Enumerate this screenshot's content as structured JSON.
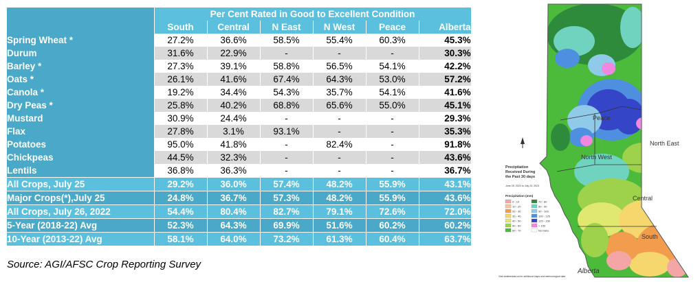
{
  "table": {
    "title": "Per Cent Rated in Good to Excellent Condition",
    "columns": [
      "South",
      "Central",
      "N East",
      "N West",
      "Peace",
      "Alberta"
    ],
    "crop_rows": [
      {
        "label": "Spring Wheat *",
        "values": [
          "27.2%",
          "36.6%",
          "58.5%",
          "55.4%",
          "60.3%",
          "45.3%"
        ]
      },
      {
        "label": "Durum",
        "values": [
          "31.6%",
          "22.9%",
          "-",
          "-",
          "-",
          "30.3%"
        ]
      },
      {
        "label": "Barley *",
        "values": [
          "27.3%",
          "39.1%",
          "58.8%",
          "56.5%",
          "54.1%",
          "42.2%"
        ]
      },
      {
        "label": "Oats *",
        "values": [
          "26.1%",
          "41.6%",
          "67.4%",
          "64.3%",
          "53.0%",
          "57.2%"
        ]
      },
      {
        "label": "Canola *",
        "values": [
          "19.2%",
          "34.4%",
          "54.3%",
          "35.7%",
          "54.1%",
          "41.6%"
        ]
      },
      {
        "label": "Dry Peas *",
        "values": [
          "25.8%",
          "40.2%",
          "68.8%",
          "65.6%",
          "55.0%",
          "45.1%"
        ]
      },
      {
        "label": "Mustard",
        "values": [
          "30.9%",
          "24.4%",
          "-",
          "-",
          "-",
          "29.3%"
        ]
      },
      {
        "label": "Flax",
        "values": [
          "27.8%",
          "3.1%",
          "93.1%",
          "-",
          "-",
          "35.3%"
        ]
      },
      {
        "label": "Potatoes",
        "values": [
          "95.0%",
          "41.8%",
          "-",
          "82.4%",
          "-",
          "91.8%"
        ]
      },
      {
        "label": "Chickpeas",
        "values": [
          "44.5%",
          "32.3%",
          "-",
          "-",
          "-",
          "43.6%"
        ]
      },
      {
        "label": "Lentils",
        "values": [
          "36.8%",
          "36.3%",
          "-",
          "-",
          "-",
          "36.7%"
        ]
      }
    ],
    "summary_rows": [
      {
        "label": "All Crops, July 25",
        "values": [
          "29.2%",
          "36.0%",
          "57.4%",
          "48.2%",
          "55.9%",
          "43.1%"
        ]
      },
      {
        "label": "Major Crops(*),July 25",
        "values": [
          "24.8%",
          "36.7%",
          "57.3%",
          "48.2%",
          "55.9%",
          "43.6%"
        ]
      },
      {
        "label": "All Crops, July 26, 2022",
        "values": [
          "54.4%",
          "80.4%",
          "82.7%",
          "79.1%",
          "72.6%",
          "72.0%"
        ]
      },
      {
        "label": "5-Year (2018-22) Avg",
        "values": [
          "52.3%",
          "64.3%",
          "69.9%",
          "51.6%",
          "60.2%",
          "60.2%"
        ]
      },
      {
        "label": "10-Year (2013-22) Avg",
        "values": [
          "58.1%",
          "64.0%",
          "73.2%",
          "61.3%",
          "60.4%",
          "63.7%"
        ]
      }
    ]
  },
  "source": "Source: AGI/AFSC Crop Reporting Survey",
  "map": {
    "title_lines": [
      "Precipitation",
      "Received During",
      "the Past 30 days"
    ],
    "date_line": "June 25, 2023 to July 24, 2023",
    "legend_title": "Precipitation (mm)",
    "legend_items": [
      {
        "label": "0 - 10",
        "color": "#f4a6a6"
      },
      {
        "label": "10 - 20",
        "color": "#f7c7a0"
      },
      {
        "label": "20 - 30",
        "color": "#f29c4e"
      },
      {
        "label": "30 - 40",
        "color": "#f5d76e"
      },
      {
        "label": "40 - 50",
        "color": "#e0e870"
      },
      {
        "label": "50 - 60",
        "color": "#9fd24b"
      },
      {
        "label": "60 - 70",
        "color": "#4cba3a"
      },
      {
        "label": "70 - 80",
        "color": "#2e8b3c"
      },
      {
        "label": "80 - 90",
        "color": "#6fd3c0"
      },
      {
        "label": "90 - 100",
        "color": "#8fcbe8"
      },
      {
        "label": "100 - 125",
        "color": "#4f8fe0"
      },
      {
        "label": "125 - 150",
        "color": "#3545c8"
      },
      {
        "label": "> 150",
        "color": "#f087e0"
      },
      {
        "label": "No Data",
        "color": "#ffffff"
      }
    ],
    "region_labels": [
      "Peace",
      "North West",
      "North East",
      "Central",
      "South"
    ],
    "logo_text": "Alberta",
    "footer": "Visit weatherdata.ca for additional maps and meteorological data"
  }
}
